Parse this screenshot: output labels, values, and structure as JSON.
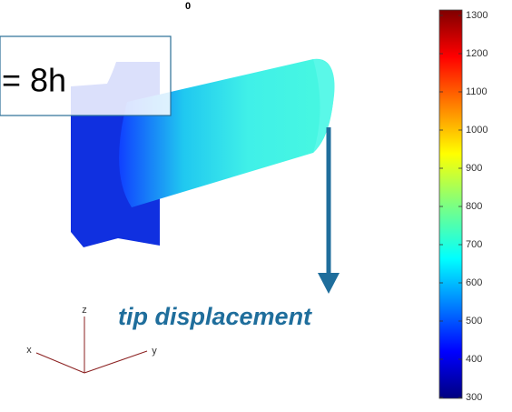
{
  "title": "0",
  "callout": "= 8h",
  "annotation": "tip displacement",
  "axes": {
    "x": "x",
    "y": "y",
    "z": "z"
  },
  "colorbar": {
    "lim": [
      300,
      1300
    ],
    "ticks": [
      300,
      400,
      500,
      600,
      700,
      800,
      900,
      1000,
      1100,
      1200,
      1300
    ]
  }
}
